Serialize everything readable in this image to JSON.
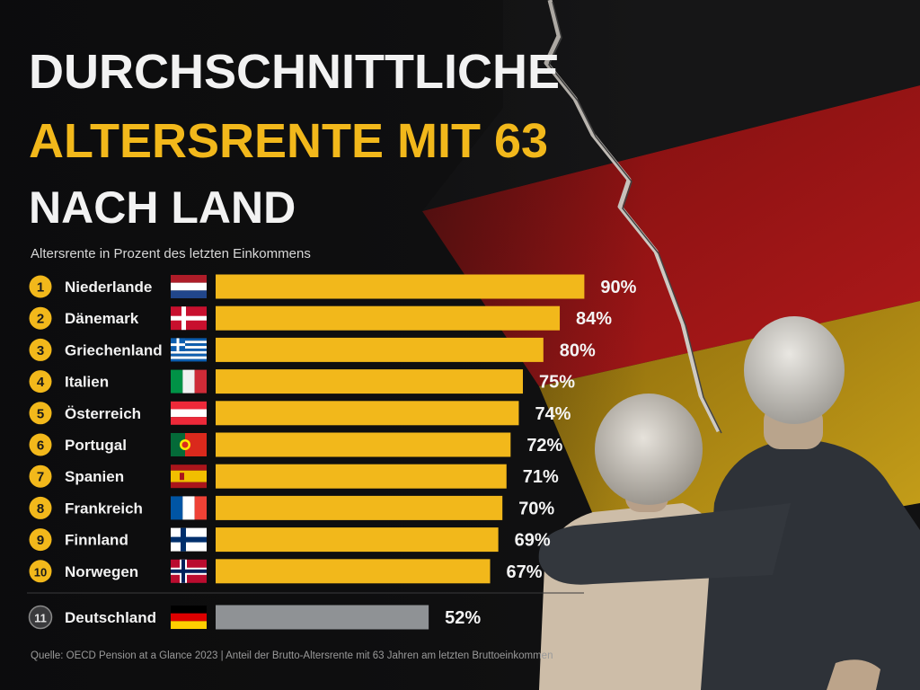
{
  "title": {
    "line1": "DURCHSCHNITTLICHE",
    "line2": "ALTERSRENTE MIT 63",
    "line3": "NACH LAND"
  },
  "subtitle": "Altersrente in Prozent des letzten Einkommens",
  "footer": "Quelle: OECD Pension at a Glance 2023  |  Anteil der Brutto-Altersrente mit 63 Jahren am letzten Bruttoeinkommen",
  "colors": {
    "accent": "#f2b81b",
    "highlight_bar": "#8f9295",
    "title_white": "#f2f2f2",
    "background": "#111112"
  },
  "chart_data": {
    "type": "bar",
    "orientation": "horizontal",
    "title": "DURCHSCHNITTLICHE ALTERSRENTE MIT 63 NACH LAND",
    "ylabel": "Altersrente in Prozent des letzten Einkommens",
    "value_suffix": "%",
    "xlim": [
      0,
      100
    ],
    "grid": false,
    "rows": [
      {
        "rank": "1",
        "country": "Niederlande",
        "flag": "netherlands-flag",
        "value": 90
      },
      {
        "rank": "2",
        "country": "Dänemark",
        "flag": "denmark-flag",
        "value": 84
      },
      {
        "rank": "3",
        "country": "Griechenland",
        "flag": "greece-flag",
        "value": 80
      },
      {
        "rank": "4",
        "country": "Italien",
        "flag": "italy-flag",
        "value": 75
      },
      {
        "rank": "5",
        "country": "Österreich",
        "flag": "austria-flag",
        "value": 74
      },
      {
        "rank": "6",
        "country": "Portugal",
        "flag": "portugal-flag",
        "value": 72
      },
      {
        "rank": "7",
        "country": "Spanien",
        "flag": "spain-flag",
        "value": 71
      },
      {
        "rank": "8",
        "country": "Frankreich",
        "flag": "france-flag",
        "value": 70
      },
      {
        "rank": "9",
        "country": "Finnland",
        "flag": "finland-flag",
        "value": 69
      },
      {
        "rank": "10",
        "country": "Norwegen",
        "flag": "norway-flag",
        "value": 67
      },
      {
        "rank": "11",
        "country": "Deutschland",
        "flag": "germany-flag",
        "value": 52,
        "highlight": true
      }
    ]
  }
}
